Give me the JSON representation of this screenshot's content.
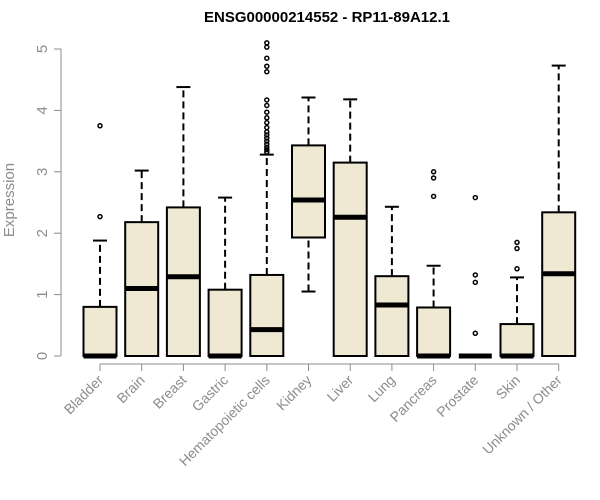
{
  "chart_data": {
    "type": "boxplot",
    "title": "ENSG00000214552 - RP11-89A12.1",
    "ylabel": "Expression",
    "xlabel": "",
    "ylim": [
      0,
      5
    ],
    "yticks": [
      0,
      1,
      2,
      3,
      4,
      5
    ],
    "grid": false,
    "box_fill": "#efe8d2",
    "stroke": "#000000",
    "axis_color": "#8c8c8c",
    "categories": [
      "Bladder",
      "Brain",
      "Breast",
      "Gastric",
      "Hematopoietic cells",
      "Kidney",
      "Liver",
      "Lung",
      "Pancreas",
      "Prostate",
      "Skin",
      "Unknown / Other"
    ],
    "boxes": [
      {
        "category": "Bladder",
        "whisker_low": 0,
        "q1": 0,
        "median": 0,
        "q3": 0.8,
        "whisker_high": 1.88,
        "outliers": [
          2.27,
          3.75
        ]
      },
      {
        "category": "Brain",
        "whisker_low": 0,
        "q1": 0,
        "median": 1.1,
        "q3": 2.18,
        "whisker_high": 3.02,
        "outliers": []
      },
      {
        "category": "Breast",
        "whisker_low": 0,
        "q1": 0,
        "median": 1.29,
        "q3": 2.42,
        "whisker_high": 4.38,
        "outliers": []
      },
      {
        "category": "Gastric",
        "whisker_low": 0,
        "q1": 0,
        "median": 0,
        "q3": 1.08,
        "whisker_high": 2.58,
        "outliers": []
      },
      {
        "category": "Hematopoietic cells",
        "whisker_low": 0,
        "q1": 0,
        "median": 0.43,
        "q3": 1.32,
        "whisker_high": 3.28,
        "outliers": [
          3.32,
          3.36,
          3.4,
          3.45,
          3.5,
          3.55,
          3.6,
          3.65,
          3.72,
          3.8,
          3.88,
          3.97,
          4.08,
          4.17,
          4.63,
          4.72,
          4.85,
          5.03,
          5.1
        ]
      },
      {
        "category": "Kidney",
        "whisker_low": 1.05,
        "q1": 1.93,
        "median": 2.54,
        "q3": 3.43,
        "whisker_high": 4.21,
        "outliers": []
      },
      {
        "category": "Liver",
        "whisker_low": 0,
        "q1": 0,
        "median": 2.26,
        "q3": 3.15,
        "whisker_high": 4.18,
        "outliers": []
      },
      {
        "category": "Lung",
        "whisker_low": 0,
        "q1": 0,
        "median": 0.83,
        "q3": 1.3,
        "whisker_high": 2.43,
        "outliers": []
      },
      {
        "category": "Pancreas",
        "whisker_low": 0,
        "q1": 0,
        "median": 0,
        "q3": 0.79,
        "whisker_high": 1.47,
        "outliers": [
          2.6,
          2.9,
          3.0
        ]
      },
      {
        "category": "Prostate",
        "whisker_low": 0,
        "q1": 0,
        "median": 0,
        "q3": 0,
        "whisker_high": 0,
        "outliers": [
          0.37,
          1.2,
          1.32,
          2.58
        ]
      },
      {
        "category": "Skin",
        "whisker_low": 0,
        "q1": 0,
        "median": 0,
        "q3": 0.52,
        "whisker_high": 1.28,
        "outliers": [
          1.42,
          1.75,
          1.85
        ]
      },
      {
        "category": "Unknown / Other",
        "whisker_low": 0,
        "q1": 0,
        "median": 1.34,
        "q3": 2.34,
        "whisker_high": 4.73,
        "outliers": []
      }
    ]
  }
}
